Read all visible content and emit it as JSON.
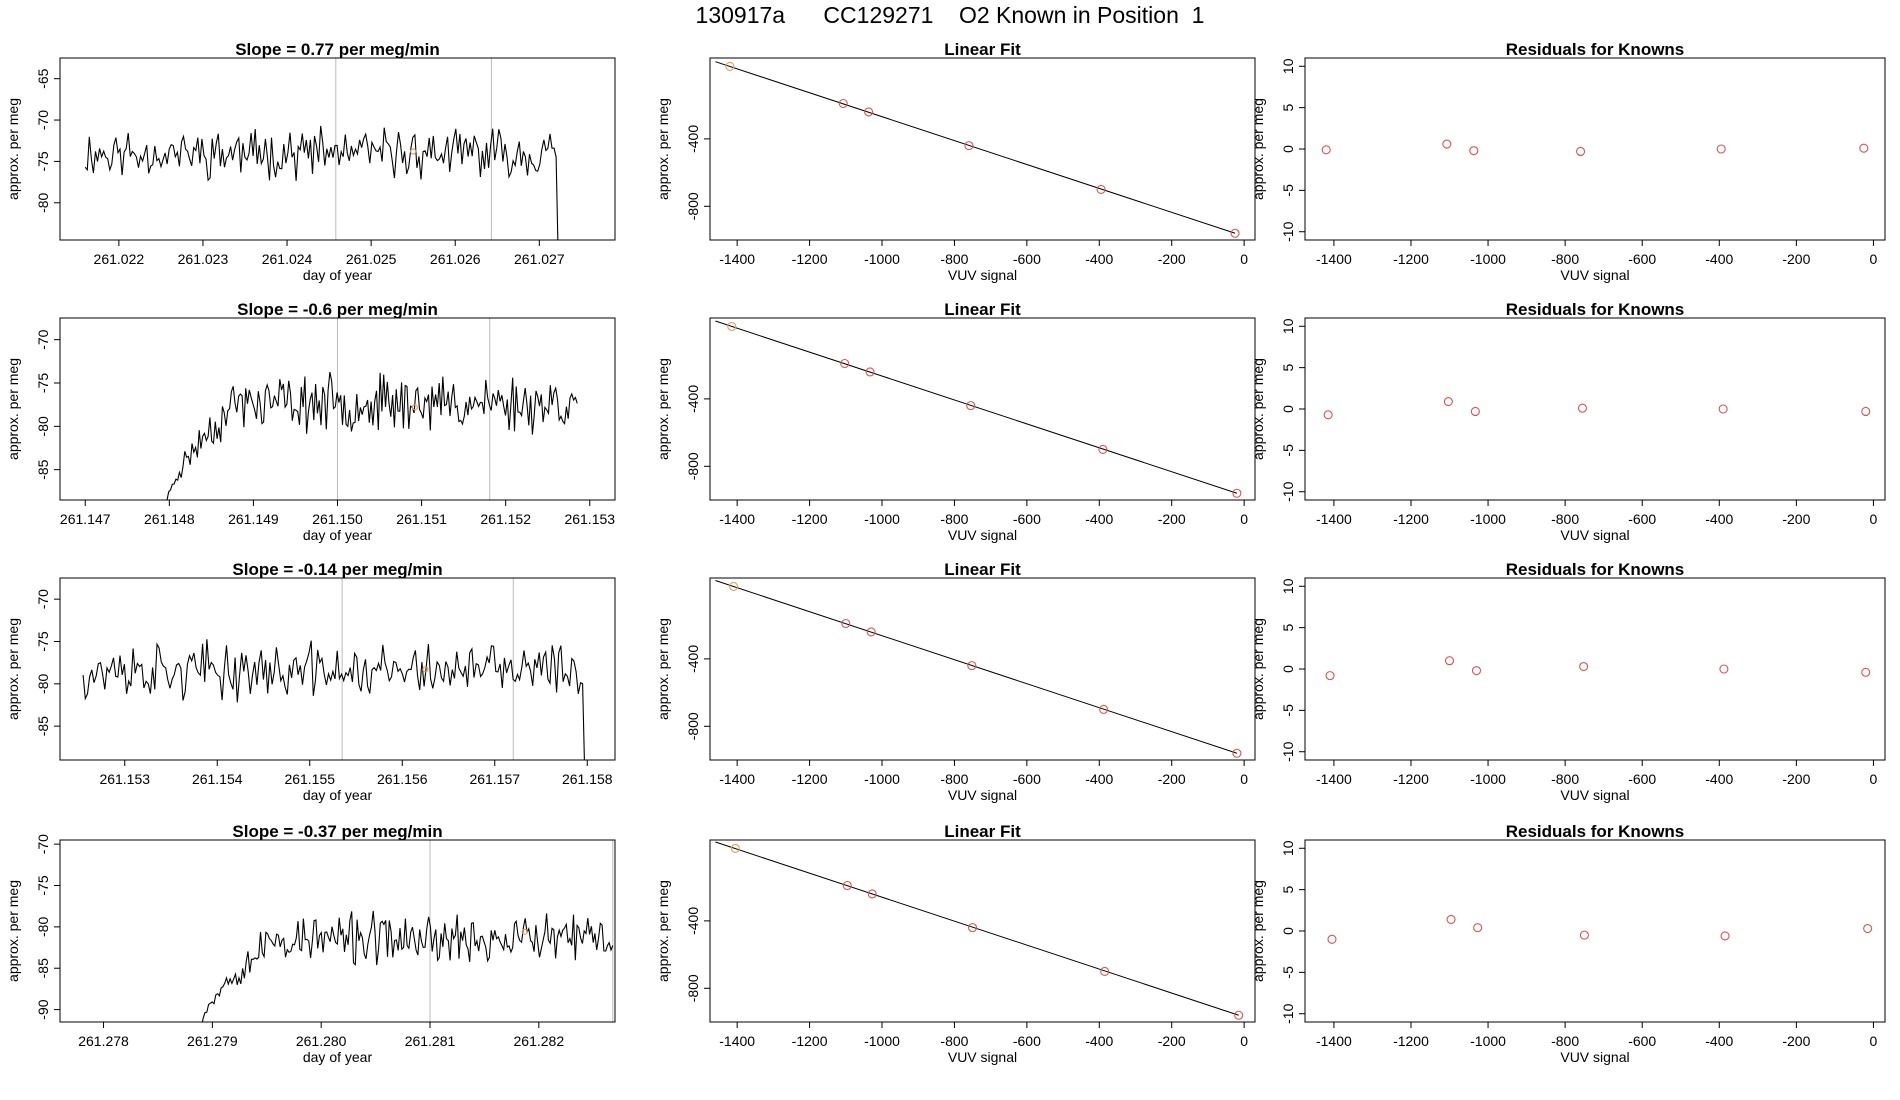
{
  "main_title": "130917a      CC129271    O2 Known in Position  1",
  "colors": {
    "line": "#000000",
    "marker": "#e0a050",
    "residual": "#e05050",
    "vline": "#bbbbbb"
  },
  "chart_data": [
    {
      "type": "line",
      "row": 1,
      "col": 1,
      "title": "Slope =  0.77  per meg/min",
      "xlabel": "day of year",
      "ylabel": "approx. per meg",
      "xticks": [
        "261.022",
        "261.023",
        "261.024",
        "261.025",
        "261.026",
        "261.027"
      ],
      "yticks": [
        "-80",
        "-75",
        "-70",
        "-65"
      ],
      "xlim": [
        261.0213,
        261.0279
      ],
      "ylim": [
        -84.5,
        -62.5
      ],
      "series_start": 261.0216,
      "series_end": 261.0272,
      "baseline": -74.0,
      "noise_amplitude": 2.2,
      "seed": 11,
      "ramp_in": null,
      "drop_out": -86,
      "vlines": [
        261.02458,
        261.02643
      ],
      "marker": {
        "x": 261.0255,
        "y": -73.8
      }
    },
    {
      "type": "scatter",
      "row": 1,
      "col": 2,
      "title": "Linear Fit",
      "xlabel": "VUV signal",
      "ylabel": "approx. per meg",
      "xticks": [
        "-1400",
        "-1200",
        "-1000",
        "-800",
        "-600",
        "-400",
        "-200",
        "0"
      ],
      "yticks": [
        "-800",
        "-400"
      ],
      "xlim": [
        -1475,
        30
      ],
      "ylim": [
        -1000,
        80
      ],
      "points": [
        {
          "x": -1420,
          "y": 30
        },
        {
          "x": -1107,
          "y": -190
        },
        {
          "x": -1037,
          "y": -240
        },
        {
          "x": -760,
          "y": -440
        },
        {
          "x": -395,
          "y": -700
        },
        {
          "x": -25,
          "y": -960
        }
      ],
      "highlight_index": 0,
      "fit": [
        {
          "x": -1460,
          "y": 58
        },
        {
          "x": -25,
          "y": -960
        }
      ]
    },
    {
      "type": "scatter",
      "row": 1,
      "col": 3,
      "title": "Residuals for Knowns",
      "xlabel": "VUV signal",
      "ylabel": "approx. per meg",
      "xticks": [
        "-1400",
        "-1200",
        "-1000",
        "-800",
        "-600",
        "-400",
        "-200",
        "0"
      ],
      "yticks": [
        "-10",
        "-5",
        "0",
        "5",
        "10"
      ],
      "xlim": [
        -1475,
        30
      ],
      "ylim": [
        -11,
        11
      ],
      "points": [
        {
          "x": -1420,
          "y": -0.1
        },
        {
          "x": -1107,
          "y": 0.6
        },
        {
          "x": -1037,
          "y": -0.2
        },
        {
          "x": -760,
          "y": -0.3
        },
        {
          "x": -395,
          "y": 0.0
        },
        {
          "x": -25,
          "y": 0.1
        }
      ]
    },
    {
      "type": "line",
      "row": 2,
      "col": 1,
      "title": "Slope =  -0.6  per meg/min",
      "xlabel": "day of year",
      "ylabel": "approx. per meg",
      "xticks": [
        "261.147",
        "261.148",
        "261.149",
        "261.150",
        "261.151",
        "261.152",
        "261.153"
      ],
      "yticks": [
        "-85",
        "-80",
        "-75",
        "-70"
      ],
      "xlim": [
        261.1467,
        261.1533
      ],
      "ylim": [
        -88.5,
        -67.5
      ],
      "series_start": 261.14795,
      "series_end": 261.15285,
      "baseline": -77.3,
      "noise_amplitude": 2.4,
      "seed": 23,
      "ramp_in": {
        "from": -90,
        "span": 0.00085
      },
      "drop_out": null,
      "vlines": [
        261.15,
        261.15181
      ],
      "marker": {
        "x": 261.15092,
        "y": -77.8
      }
    },
    {
      "type": "scatter",
      "row": 2,
      "col": 2,
      "title": "Linear Fit",
      "xlabel": "VUV signal",
      "ylabel": "approx. per meg",
      "xticks": [
        "-1400",
        "-1200",
        "-1000",
        "-800",
        "-600",
        "-400",
        "-200",
        "0"
      ],
      "yticks": [
        "-800",
        "-400"
      ],
      "xlim": [
        -1475,
        30
      ],
      "ylim": [
        -1000,
        80
      ],
      "points": [
        {
          "x": -1415,
          "y": 30
        },
        {
          "x": -1103,
          "y": -190
        },
        {
          "x": -1033,
          "y": -240
        },
        {
          "x": -755,
          "y": -440
        },
        {
          "x": -390,
          "y": -700
        },
        {
          "x": -20,
          "y": -960
        }
      ],
      "highlight_index": 0,
      "fit": [
        {
          "x": -1460,
          "y": 62
        },
        {
          "x": -20,
          "y": -960
        }
      ]
    },
    {
      "type": "scatter",
      "row": 2,
      "col": 3,
      "title": "Residuals for Knowns",
      "xlabel": "VUV signal",
      "ylabel": "approx. per meg",
      "xticks": [
        "-1400",
        "-1200",
        "-1000",
        "-800",
        "-600",
        "-400",
        "-200",
        "0"
      ],
      "yticks": [
        "-10",
        "-5",
        "0",
        "5",
        "10"
      ],
      "xlim": [
        -1475,
        30
      ],
      "ylim": [
        -11,
        11
      ],
      "points": [
        {
          "x": -1415,
          "y": -0.7
        },
        {
          "x": -1103,
          "y": 0.9
        },
        {
          "x": -1033,
          "y": -0.3
        },
        {
          "x": -755,
          "y": 0.1
        },
        {
          "x": -390,
          "y": 0.0
        },
        {
          "x": -20,
          "y": -0.3
        }
      ]
    },
    {
      "type": "line",
      "row": 3,
      "col": 1,
      "title": "Slope =  -0.14  per meg/min",
      "xlabel": "day of year",
      "ylabel": "approx. per meg",
      "xticks": [
        "261.153",
        "261.154",
        "261.155",
        "261.156",
        "261.157",
        "261.158"
      ],
      "yticks": [
        "-85",
        "-80",
        "-75",
        "-70"
      ],
      "xlim": [
        261.1523,
        261.1583
      ],
      "ylim": [
        -89,
        -67.5
      ],
      "series_start": 261.15255,
      "series_end": 261.15795,
      "baseline": -78.5,
      "noise_amplitude": 2.5,
      "seed": 37,
      "ramp_in": null,
      "drop_out": -90,
      "vlines": [
        261.15535,
        261.1572
      ],
      "marker": {
        "x": 261.15625,
        "y": -78.3
      }
    },
    {
      "type": "scatter",
      "row": 3,
      "col": 2,
      "title": "Linear Fit",
      "xlabel": "VUV signal",
      "ylabel": "approx. per meg",
      "xticks": [
        "-1400",
        "-1200",
        "-1000",
        "-800",
        "-600",
        "-400",
        "-200",
        "0"
      ],
      "yticks": [
        "-800",
        "-400"
      ],
      "xlim": [
        -1475,
        30
      ],
      "ylim": [
        -1000,
        80
      ],
      "points": [
        {
          "x": -1410,
          "y": 30
        },
        {
          "x": -1100,
          "y": -190
        },
        {
          "x": -1030,
          "y": -240
        },
        {
          "x": -752,
          "y": -440
        },
        {
          "x": -388,
          "y": -700
        },
        {
          "x": -20,
          "y": -960
        }
      ],
      "highlight_index": 0,
      "fit": [
        {
          "x": -1460,
          "y": 65
        },
        {
          "x": -20,
          "y": -960
        }
      ]
    },
    {
      "type": "scatter",
      "row": 3,
      "col": 3,
      "title": "Residuals for Knowns",
      "xlabel": "VUV signal",
      "ylabel": "approx. per meg",
      "xticks": [
        "-1400",
        "-1200",
        "-1000",
        "-800",
        "-600",
        "-400",
        "-200",
        "0"
      ],
      "yticks": [
        "-10",
        "-5",
        "0",
        "5",
        "10"
      ],
      "xlim": [
        -1475,
        30
      ],
      "ylim": [
        -11,
        11
      ],
      "points": [
        {
          "x": -1410,
          "y": -0.8
        },
        {
          "x": -1100,
          "y": 1.0
        },
        {
          "x": -1030,
          "y": -0.2
        },
        {
          "x": -752,
          "y": 0.3
        },
        {
          "x": -388,
          "y": 0.0
        },
        {
          "x": -20,
          "y": -0.4
        }
      ]
    },
    {
      "type": "line",
      "row": 4,
      "col": 1,
      "title": "Slope =  -0.37  per meg/min",
      "xlabel": "day of year",
      "ylabel": "approx. per meg",
      "xticks": [
        "261.278",
        "261.279",
        "261.280",
        "261.281",
        "261.282"
      ],
      "yticks": [
        "-90",
        "-85",
        "-80",
        "-75",
        "-70"
      ],
      "xlim": [
        261.2776,
        261.2827
      ],
      "ylim": [
        -91.5,
        -69.5
      ],
      "series_start": 261.2789,
      "series_end": 261.28268,
      "baseline": -81.5,
      "noise_amplitude": 2.3,
      "seed": 53,
      "ramp_in": {
        "from": -92,
        "span": 0.0007
      },
      "drop_out": null,
      "vlines": [
        261.281,
        261.28268
      ],
      "marker": {
        "x": 261.28187,
        "y": -80.6
      }
    },
    {
      "type": "scatter",
      "row": 4,
      "col": 2,
      "title": "Linear Fit",
      "xlabel": "VUV signal",
      "ylabel": "approx. per meg",
      "xticks": [
        "-1400",
        "-1200",
        "-1000",
        "-800",
        "-600",
        "-400",
        "-200",
        "0"
      ],
      "yticks": [
        "-800",
        "-400"
      ],
      "xlim": [
        -1475,
        30
      ],
      "ylim": [
        -1000,
        80
      ],
      "points": [
        {
          "x": -1405,
          "y": 30
        },
        {
          "x": -1096,
          "y": -190
        },
        {
          "x": -1027,
          "y": -240
        },
        {
          "x": -750,
          "y": -440
        },
        {
          "x": -385,
          "y": -700
        },
        {
          "x": -15,
          "y": -960
        }
      ],
      "highlight_index": 0,
      "fit": [
        {
          "x": -1460,
          "y": 68
        },
        {
          "x": -15,
          "y": -960
        }
      ]
    },
    {
      "type": "scatter",
      "row": 4,
      "col": 3,
      "title": "Residuals for Knowns",
      "xlabel": "VUV signal",
      "ylabel": "approx. per meg",
      "xticks": [
        "-1400",
        "-1200",
        "-1000",
        "-800",
        "-600",
        "-400",
        "-200",
        "0"
      ],
      "yticks": [
        "-10",
        "-5",
        "0",
        "5",
        "10"
      ],
      "xlim": [
        -1475,
        30
      ],
      "ylim": [
        -11,
        11
      ],
      "points": [
        {
          "x": -1405,
          "y": -1.0
        },
        {
          "x": -1096,
          "y": 1.4
        },
        {
          "x": -1027,
          "y": 0.4
        },
        {
          "x": -750,
          "y": -0.5
        },
        {
          "x": -385,
          "y": -0.6
        },
        {
          "x": -15,
          "y": 0.3
        }
      ]
    }
  ]
}
